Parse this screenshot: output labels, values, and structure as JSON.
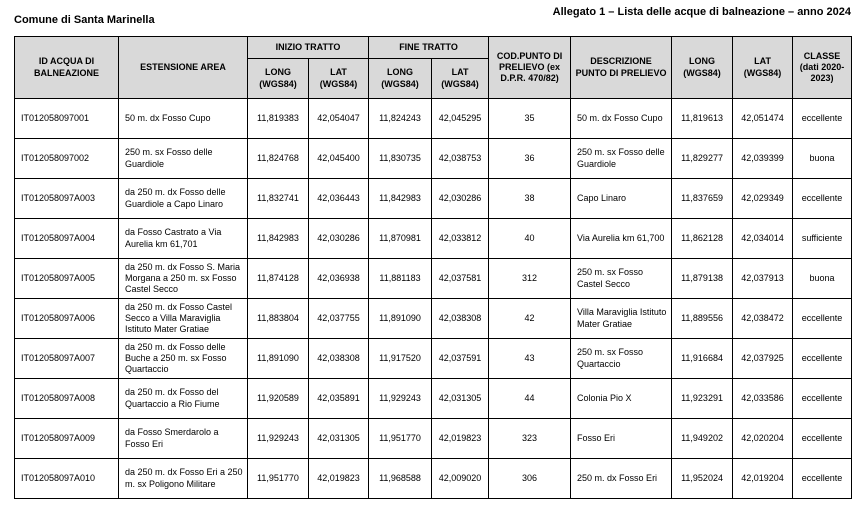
{
  "page": {
    "municipality": "Comune di Santa Marinella",
    "attachment_title": "Allegato 1 – Lista delle acque di balneazione – anno 2024"
  },
  "table": {
    "headers": {
      "id": "ID ACQUA DI BALNEAZIONE",
      "area": "ESTENSIONE AREA",
      "inizio_tratto": "INIZIO TRATTO",
      "fine_tratto": "FINE TRATTO",
      "long_wgs84": "LONG (WGS84)",
      "lat_wgs84": "LAT (WGS84)",
      "cod_punto": "COD.PUNTO DI PRELIEVO (ex D.P.R. 470/82)",
      "descrizione": "DESCRIZIONE PUNTO DI PRELIEVO",
      "long": "LONG (WGS84)",
      "lat": "LAT (WGS84)",
      "classe": "CLASSE (dati 2020-2023)"
    },
    "rows": [
      {
        "id": "IT012058097001",
        "area": "50 m. dx Fosso Cupo",
        "inizio_long": "11,819383",
        "inizio_lat": "42,054047",
        "fine_long": "11,824243",
        "fine_lat": "42,045295",
        "cod": "35",
        "descrizione": "50 m. dx Fosso Cupo",
        "long": "11,819613",
        "lat": "42,051474",
        "classe": "eccellente"
      },
      {
        "id": "IT012058097002",
        "area": "250 m. sx Fosso delle Guardiole",
        "inizio_long": "11,824768",
        "inizio_lat": "42,045400",
        "fine_long": "11,830735",
        "fine_lat": "42,038753",
        "cod": "36",
        "descrizione": "250 m. sx Fosso delle Guardiole",
        "long": "11,829277",
        "lat": "42,039399",
        "classe": "buona"
      },
      {
        "id": "IT012058097A003",
        "area": "da 250 m. dx Fosso delle Guardiole a Capo Linaro",
        "inizio_long": "11,832741",
        "inizio_lat": "42,036443",
        "fine_long": "11,842983",
        "fine_lat": "42,030286",
        "cod": "38",
        "descrizione": "Capo Linaro",
        "long": "11,837659",
        "lat": "42,029349",
        "classe": "eccellente"
      },
      {
        "id": "IT012058097A004",
        "area": "da Fosso Castrato a Via Aurelia km 61,701",
        "inizio_long": "11,842983",
        "inizio_lat": "42,030286",
        "fine_long": "11,870981",
        "fine_lat": "42,033812",
        "cod": "40",
        "descrizione": "Via Aurelia km 61,700",
        "long": "11,862128",
        "lat": "42,034014",
        "classe": "sufficiente"
      },
      {
        "id": "IT012058097A005",
        "area": "da 250 m. dx Fosso S. Maria Morgana a 250 m. sx Fosso Castel Secco",
        "inizio_long": "11,874128",
        "inizio_lat": "42,036938",
        "fine_long": "11,881183",
        "fine_lat": "42,037581",
        "cod": "312",
        "descrizione": "250 m. sx Fosso Castel Secco",
        "long": "11,879138",
        "lat": "42,037913",
        "classe": "buona"
      },
      {
        "id": "IT012058097A006",
        "area": "da 250 m. dx Fosso Castel Secco a Villa Maraviglia Istituto Mater Gratiae",
        "inizio_long": "11,883804",
        "inizio_lat": "42,037755",
        "fine_long": "11,891090",
        "fine_lat": "42,038308",
        "cod": "42",
        "descrizione": "Villa Maraviglia Istituto Mater Gratiae",
        "long": "11,889556",
        "lat": "42,038472",
        "classe": "eccellente"
      },
      {
        "id": "IT012058097A007",
        "area": "da 250 m. dx Fosso delle Buche a 250 m. sx Fosso Quartaccio",
        "inizio_long": "11,891090",
        "inizio_lat": "42,038308",
        "fine_long": "11,917520",
        "fine_lat": "42,037591",
        "cod": "43",
        "descrizione": "250 m. sx Fosso Quartaccio",
        "long": "11,916684",
        "lat": "42,037925",
        "classe": "eccellente"
      },
      {
        "id": "IT012058097A008",
        "area": "da 250 m. dx Fosso del Quartaccio a Rio Fiume",
        "inizio_long": "11,920589",
        "inizio_lat": "42,035891",
        "fine_long": "11,929243",
        "fine_lat": "42,031305",
        "cod": "44",
        "descrizione": "Colonia Pio X",
        "long": "11,923291",
        "lat": "42,033586",
        "classe": "eccellente"
      },
      {
        "id": "IT012058097A009",
        "area": "da Fosso Smerdarolo a Fosso Eri",
        "inizio_long": "11,929243",
        "inizio_lat": "42,031305",
        "fine_long": "11,951770",
        "fine_lat": "42,019823",
        "cod": "323",
        "descrizione": "Fosso Eri",
        "long": "11,949202",
        "lat": "42,020204",
        "classe": "eccellente"
      },
      {
        "id": "IT012058097A010",
        "area": "da 250 m. dx Fosso Eri a 250 m. sx Poligono Militare",
        "inizio_long": "11,951770",
        "inizio_lat": "42,019823",
        "fine_long": "11,968588",
        "fine_lat": "42,009020",
        "cod": "306",
        "descrizione": "250 m. dx Fosso Eri",
        "long": "11,952024",
        "lat": "42,019204",
        "classe": "eccellente"
      }
    ]
  }
}
